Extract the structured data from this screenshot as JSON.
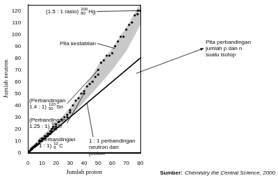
{
  "chart_data": {
    "type": "scatter",
    "x_label": "Jumlah proton",
    "y_label": "Jumlah neutron",
    "xlim": [
      0,
      80
    ],
    "xticks": [
      0,
      10,
      20,
      30,
      40,
      50,
      60,
      70,
      80
    ],
    "ylim": [
      0,
      125
    ],
    "yticks": [
      0,
      10,
      20,
      30,
      40,
      50,
      60,
      70,
      80,
      90,
      100,
      110,
      120
    ],
    "grid": false,
    "series": [
      {
        "type": "band",
        "color": "#c8c8c8",
        "x": [
          0,
          10,
          20,
          30,
          40,
          50,
          60,
          70,
          80
        ],
        "lower": [
          0,
          8,
          19,
          30,
          43,
          56,
          70,
          86,
          108
        ],
        "upper": [
          2,
          14,
          25,
          38,
          54,
          74,
          88,
          106,
          126
        ]
      },
      {
        "type": "line",
        "color": "#000000",
        "line_style": "solid",
        "x": [
          0,
          80
        ],
        "values": [
          0,
          80
        ]
      },
      {
        "type": "scatter",
        "color": "#000000",
        "marker": "circle",
        "x": [
          1,
          2,
          2,
          3,
          3,
          4,
          5,
          5,
          6,
          6,
          7,
          8,
          8,
          9,
          10,
          10,
          11,
          12,
          12,
          13,
          14,
          14,
          15,
          16,
          16,
          17,
          17,
          18,
          19,
          20,
          20,
          20,
          22,
          24,
          26,
          28,
          28,
          30,
          30,
          32,
          34,
          36,
          38,
          40,
          40,
          42,
          44,
          46,
          48,
          50,
          50,
          52,
          54,
          56,
          58,
          60,
          62,
          64,
          66,
          68,
          70,
          72,
          74,
          76,
          78,
          80
        ],
        "values": [
          1,
          2,
          3,
          3,
          4,
          5,
          5,
          6,
          6,
          7,
          7,
          8,
          10,
          10,
          10,
          12,
          12,
          12,
          14,
          14,
          14,
          16,
          16,
          16,
          18,
          18,
          20,
          22,
          20,
          20,
          24,
          22,
          26,
          28,
          30,
          30,
          32,
          34,
          36,
          40,
          44,
          46,
          50,
          50,
          52,
          56,
          58,
          60,
          64,
          66,
          70,
          76,
          78,
          82,
          82,
          84,
          90,
          94,
          98,
          98,
          104,
          108,
          110,
          116,
          117,
          120
        ]
      }
    ],
    "annotations": [
      {
        "lines": [
          "(1.5 : 1 rasio)"
        ],
        "isotope": {
          "mass": 200,
          "atomic_number": 80,
          "symbol": "Hg"
        },
        "x": 80,
        "y": 120
      },
      {
        "lines": [
          "(Perbandingan",
          "1.4 : 1)"
        ],
        "isotope": {
          "mass": 120,
          "atomic_number": 50,
          "symbol": "Sn"
        },
        "x": 50,
        "y": 70
      },
      {
        "lines": [
          "(Perbandingan",
          "1.25 : 1)"
        ],
        "isotope": {
          "mass": 90,
          "atomic_number": 40,
          "symbol": "Zr"
        },
        "x": 40,
        "y": 50
      },
      {
        "lines": [
          "(Perbandingan",
          "1 : 1)"
        ],
        "isotope": {
          "mass": 12,
          "atomic_number": 6,
          "symbol": "C"
        },
        "x": 6,
        "y": 6
      },
      {
        "lines": [
          "Pita kestabilan"
        ],
        "x": 62,
        "y": 88
      },
      {
        "lines": [
          "1 : 1 perbandingan",
          "neutron dan",
          "proton"
        ],
        "x": 42,
        "y": 42
      },
      {
        "lines": [
          "Pita perbandingan",
          "jumlah p dan n",
          "suatu isotop"
        ],
        "x": 77,
        "y": 67
      }
    ],
    "source": {
      "label": "Sumber:",
      "text": "Chemistry the Central Science, 2000"
    }
  }
}
